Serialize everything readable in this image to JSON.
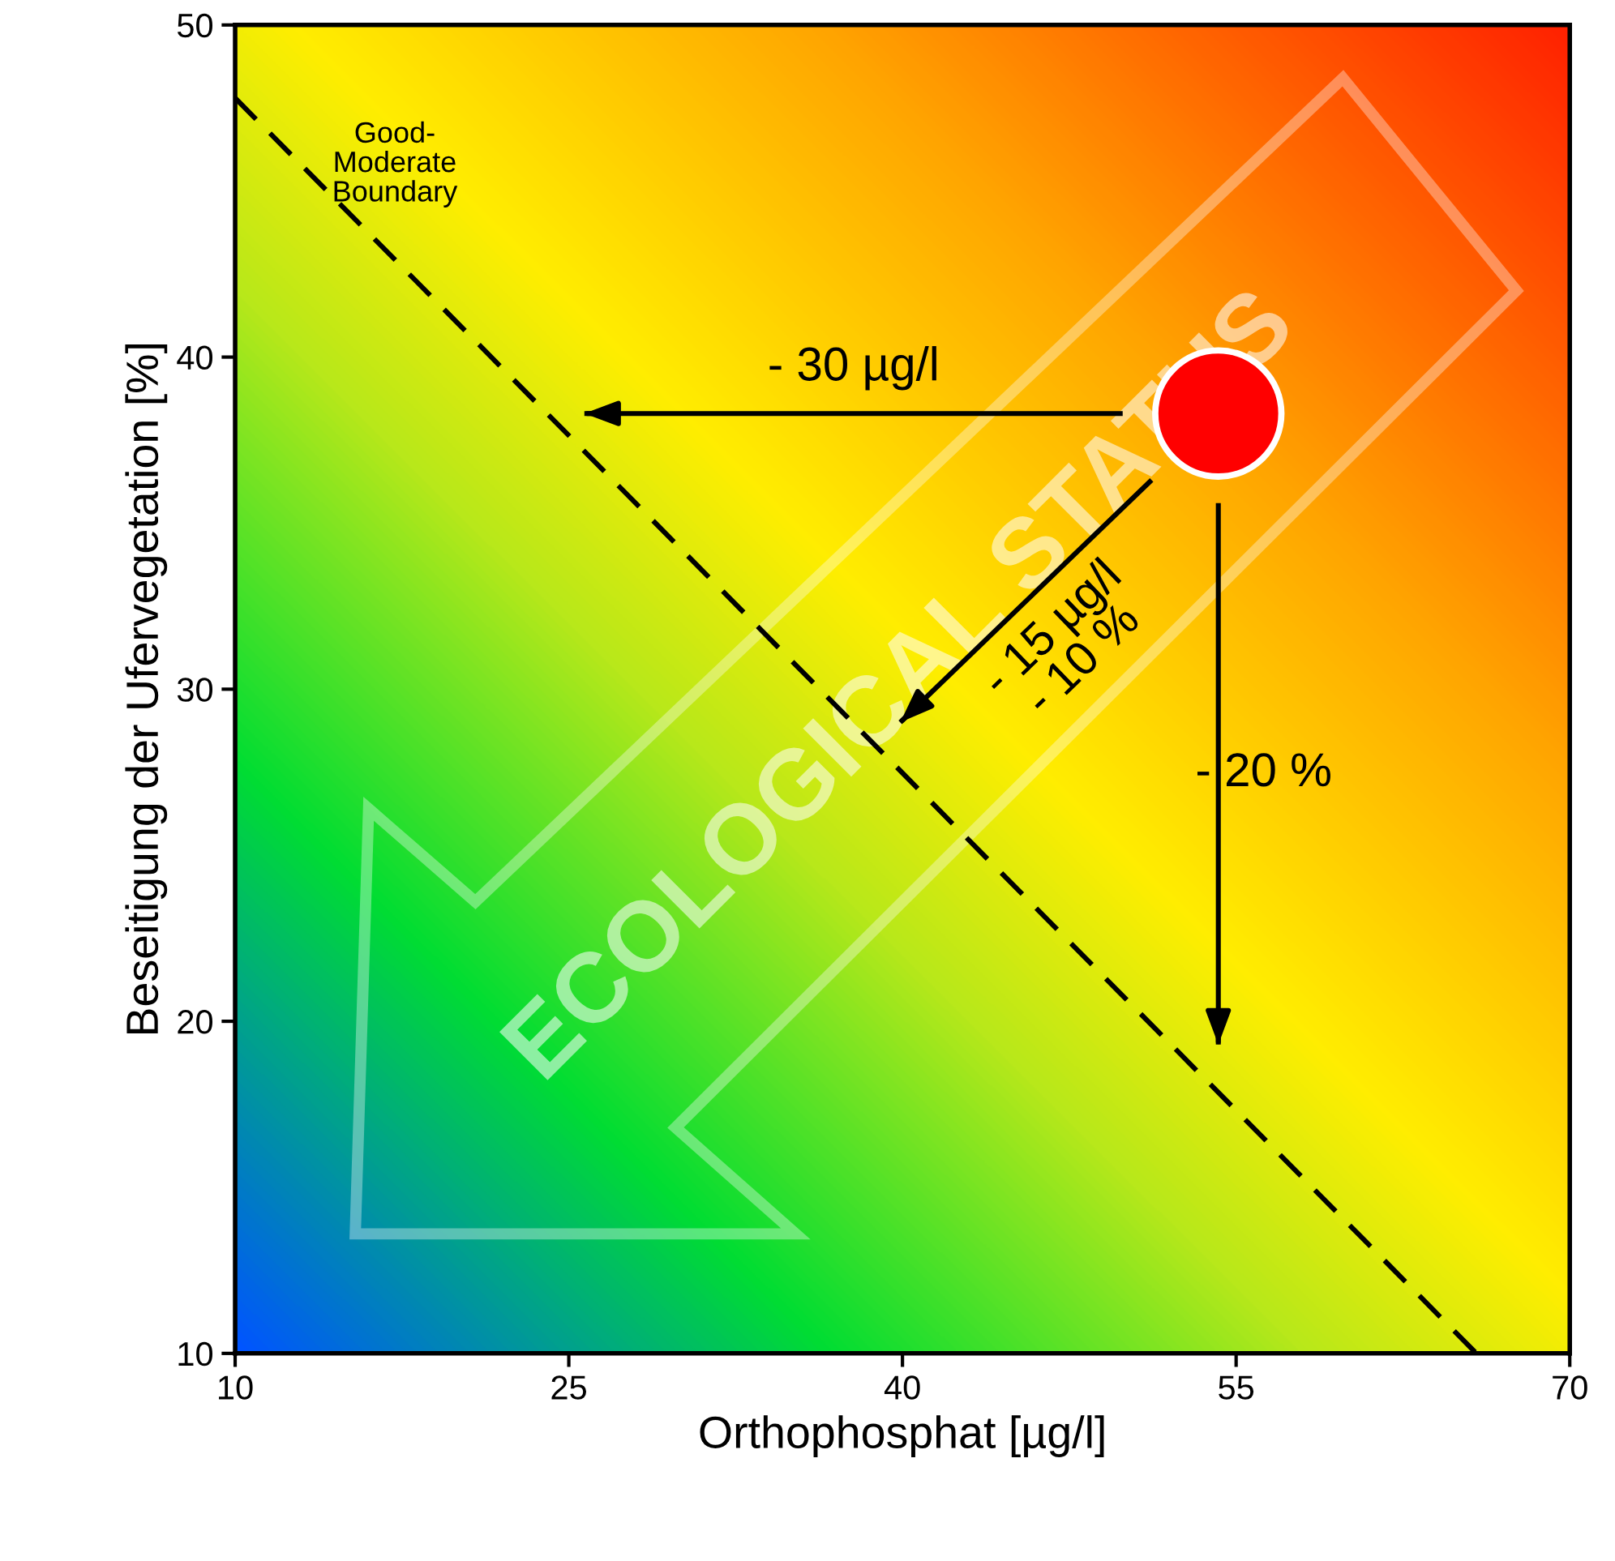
{
  "chart_data": {
    "type": "scatter",
    "xlabel": "Orthophosphat [µg/l]",
    "ylabel": "Beseitigung der Ufervegetation [%]",
    "xlim": [
      10,
      70
    ],
    "xticks": [
      10,
      25,
      40,
      55,
      70
    ],
    "ylim": [
      10,
      50
    ],
    "yticks": [
      10,
      20,
      30,
      40,
      50
    ],
    "grid": false,
    "legend": false,
    "series": [
      {
        "name": "Good-\nModerate\nBoundary",
        "type": "line",
        "line_style": "dashed",
        "color": "#000000",
        "x": [
          10,
          65.8
        ],
        "values": [
          47.8,
          10.0
        ]
      },
      {
        "name": "- 30 µg/l",
        "type": "line",
        "line_style": "solid",
        "color": "#000000",
        "x": [
          49.9,
          25.7
        ],
        "values": [
          38.3,
          38.3
        ]
      },
      {
        "name": "- 15 µg/l\n- 10 %",
        "type": "line",
        "line_style": "solid",
        "color": "#000000",
        "x": [
          51.2,
          39.9
        ],
        "values": [
          36.3,
          29.0
        ]
      },
      {
        "name": "- 20 %",
        "type": "line",
        "line_style": "solid",
        "color": "#000000",
        "x": [
          54.2,
          54.2
        ],
        "values": [
          35.6,
          19.3
        ]
      },
      {
        "marker": "circle",
        "color": "#ff0000",
        "x": [
          54.2
        ],
        "values": [
          38.3
        ]
      }
    ],
    "annotations": [
      "ECOLOGICAL STATUS"
    ]
  }
}
